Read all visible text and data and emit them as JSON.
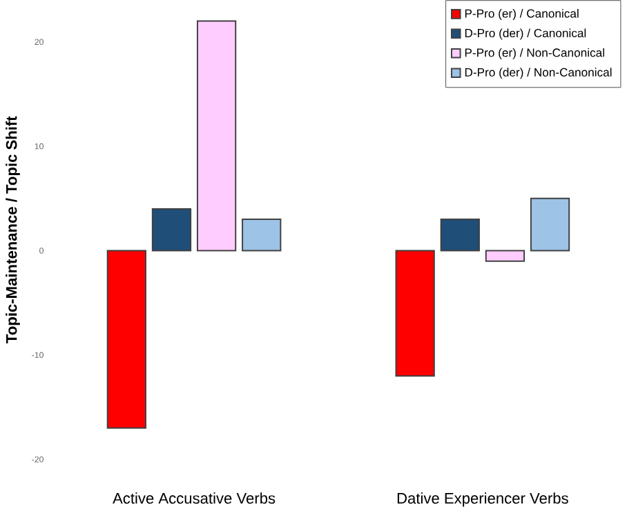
{
  "chart_data": {
    "type": "bar",
    "ylabel": "Topic-Maintenance / Topic Shift",
    "categories": [
      "Active Accusative Verbs",
      "Dative Experiencer Verbs"
    ],
    "series": [
      {
        "name": "P-Pro (er) / Canonical",
        "color": "#ff0000",
        "values": [
          -17,
          -12
        ]
      },
      {
        "name": "D-Pro (der) / Canonical",
        "color": "#1f4e79",
        "values": [
          4,
          3
        ]
      },
      {
        "name": "P-Pro (er) / Non-Canonical",
        "color": "#ffccff",
        "values": [
          22,
          -1
        ]
      },
      {
        "name": "D-Pro (der) / Non-Canonical",
        "color": "#9dc3e6",
        "values": [
          3,
          5
        ]
      }
    ],
    "ylim": [
      -20,
      24
    ],
    "yticks": [
      -20,
      -10,
      0,
      10,
      20
    ],
    "grid": false,
    "legend": "top right"
  }
}
